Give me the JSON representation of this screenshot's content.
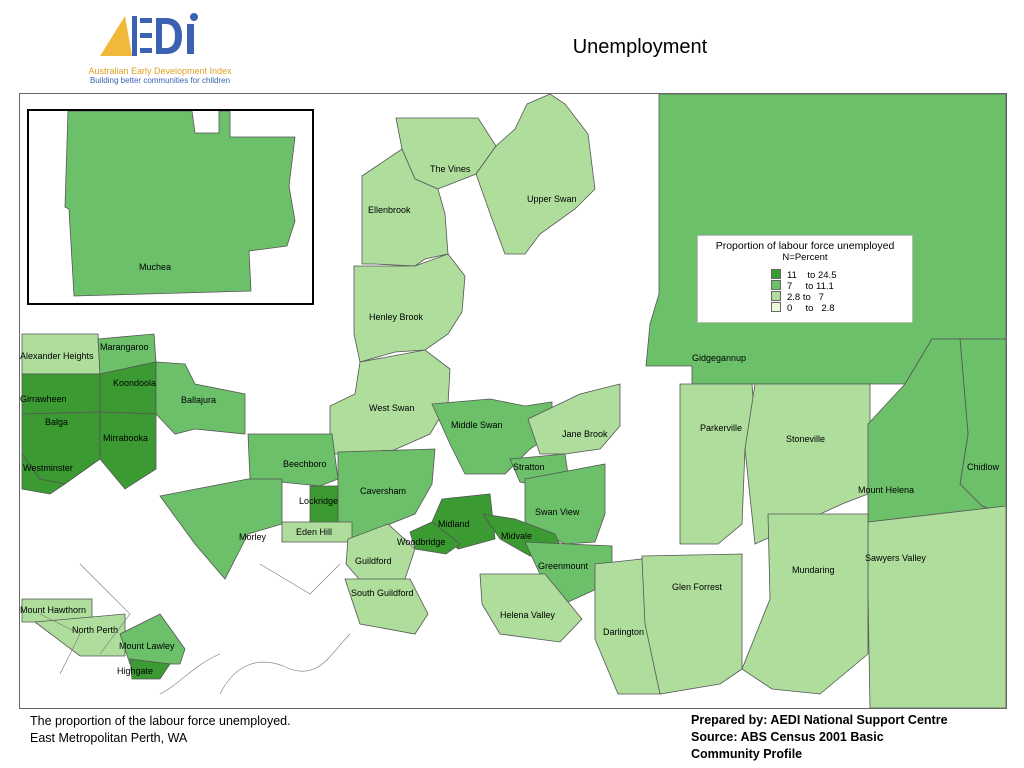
{
  "logo": {
    "mark": "AEDI",
    "name": "Australian Early Development Index",
    "tagline": "Building better communities for children"
  },
  "title": "Unemployment",
  "legend": {
    "title": "Proportion of labour force unemployed",
    "subtitle": "N=Percent",
    "classes": [
      {
        "label": "11    to 24.5",
        "color": "#3c9a32"
      },
      {
        "label": "7     to 11.1",
        "color": "#6cc06a"
      },
      {
        "label": "2.8 to   7",
        "color": "#aedd9c"
      },
      {
        "label": "0     to   2.8",
        "color": "#eefbd8"
      }
    ]
  },
  "inset": {
    "suburb": "Muchea",
    "class": 1
  },
  "suburbs": [
    {
      "name": "The Vines",
      "class": 2
    },
    {
      "name": "Upper Swan",
      "class": 2
    },
    {
      "name": "Ellenbrook",
      "class": 2
    },
    {
      "name": "Henley Brook",
      "class": 2
    },
    {
      "name": "Gidgegannup",
      "class": 1
    },
    {
      "name": "Alexander Heights",
      "class": 2
    },
    {
      "name": "Marangaroo",
      "class": 1
    },
    {
      "name": "Koondoola",
      "class": 0
    },
    {
      "name": "Girrawheen",
      "class": 0
    },
    {
      "name": "Ballajura",
      "class": 1
    },
    {
      "name": "Balga",
      "class": 0
    },
    {
      "name": "Mirrabooka",
      "class": 0
    },
    {
      "name": "Westminster",
      "class": 0
    },
    {
      "name": "West Swan",
      "class": 2
    },
    {
      "name": "Middle Swan",
      "class": 1
    },
    {
      "name": "Jane Brook",
      "class": 2
    },
    {
      "name": "Parkerville",
      "class": 2
    },
    {
      "name": "Stoneville",
      "class": 2
    },
    {
      "name": "Chidlow",
      "class": 1
    },
    {
      "name": "Beechboro",
      "class": 1
    },
    {
      "name": "Stratton",
      "class": 1
    },
    {
      "name": "Mount Helena",
      "class": 1
    },
    {
      "name": "Lockridge",
      "class": 0
    },
    {
      "name": "Caversham",
      "class": 1
    },
    {
      "name": "Swan View",
      "class": 1
    },
    {
      "name": "Morley",
      "class": 1
    },
    {
      "name": "Eden Hill",
      "class": 2
    },
    {
      "name": "Midland",
      "class": 0
    },
    {
      "name": "Midvale",
      "class": 0
    },
    {
      "name": "Woodbridge",
      "class": 0
    },
    {
      "name": "Sawyers Valley",
      "class": 2
    },
    {
      "name": "Guildford",
      "class": 2
    },
    {
      "name": "Greenmount",
      "class": 1
    },
    {
      "name": "Mundaring",
      "class": 2
    },
    {
      "name": "Glen Forrest",
      "class": 2
    },
    {
      "name": "South Guildford",
      "class": 2
    },
    {
      "name": "Mount Hawthorn",
      "class": 2
    },
    {
      "name": "Helena Valley",
      "class": 2
    },
    {
      "name": "North Perth",
      "class": 2
    },
    {
      "name": "Darlington",
      "class": 2
    },
    {
      "name": "Mount Lawley",
      "class": 1
    },
    {
      "name": "Highgate",
      "class": 0
    }
  ],
  "footer": {
    "caption_line1": "The proportion of the labour force unemployed.",
    "caption_line2": "East Metropolitan Perth, WA",
    "prepared_by": "Prepared by: AEDI National Support Centre",
    "source_line1": "Source: ABS Census 2001 Basic",
    "source_line2": "Community Profile"
  }
}
